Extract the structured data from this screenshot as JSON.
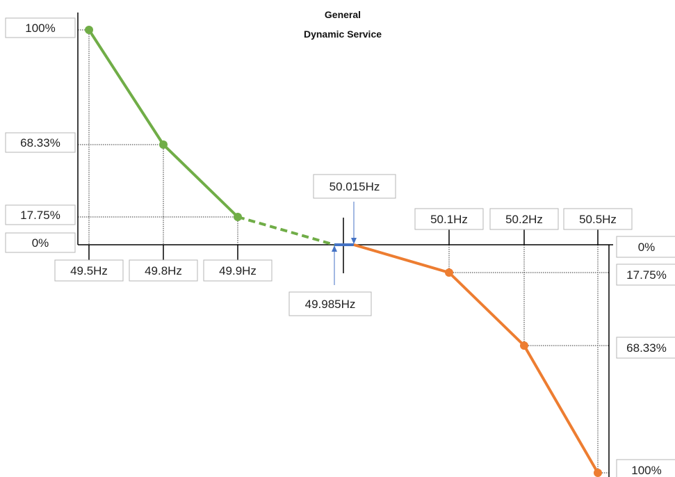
{
  "chart_data": {
    "type": "line",
    "title": "General",
    "subtitle": "Dynamic Service",
    "x_unit": "Hz",
    "series": [
      {
        "name": "",
        "color": "#70ad47",
        "points": [
          {
            "x": 49.5,
            "y": 100,
            "style": "solid"
          },
          {
            "x": 49.8,
            "y": 68.33,
            "style": "solid"
          },
          {
            "x": 49.9,
            "y": 17.75,
            "style": "solid"
          },
          {
            "x": 49.985,
            "y": 0,
            "style": "dashed"
          }
        ]
      },
      {
        "name": "",
        "color": "#4472c4",
        "points": [
          {
            "x": 49.985,
            "y": 0,
            "style": "solid"
          },
          {
            "x": 50.015,
            "y": 0,
            "style": "solid"
          }
        ]
      },
      {
        "name": "",
        "color": "#ed7d31",
        "points": [
          {
            "x": 50.015,
            "y": 0,
            "style": "dashed"
          },
          {
            "x": 50.1,
            "y": -17.75,
            "style": "solid"
          },
          {
            "x": 50.2,
            "y": -68.33,
            "style": "solid"
          },
          {
            "x": 50.5,
            "y": -100,
            "style": "solid"
          }
        ]
      }
    ],
    "x_tick_labels_low": [
      "49.5Hz",
      "49.8Hz",
      "49.9Hz"
    ],
    "x_tick_labels_high": [
      "50.1Hz",
      "50.2Hz",
      "50.5Hz"
    ],
    "deadband_labels": [
      "49.985Hz",
      "50.015Hz"
    ],
    "left_axis_labels": [
      "100%",
      "68.33%",
      "17.75%",
      "0%"
    ],
    "right_axis_labels": [
      "0%",
      "17.75%",
      "68.33%",
      "100%"
    ]
  }
}
